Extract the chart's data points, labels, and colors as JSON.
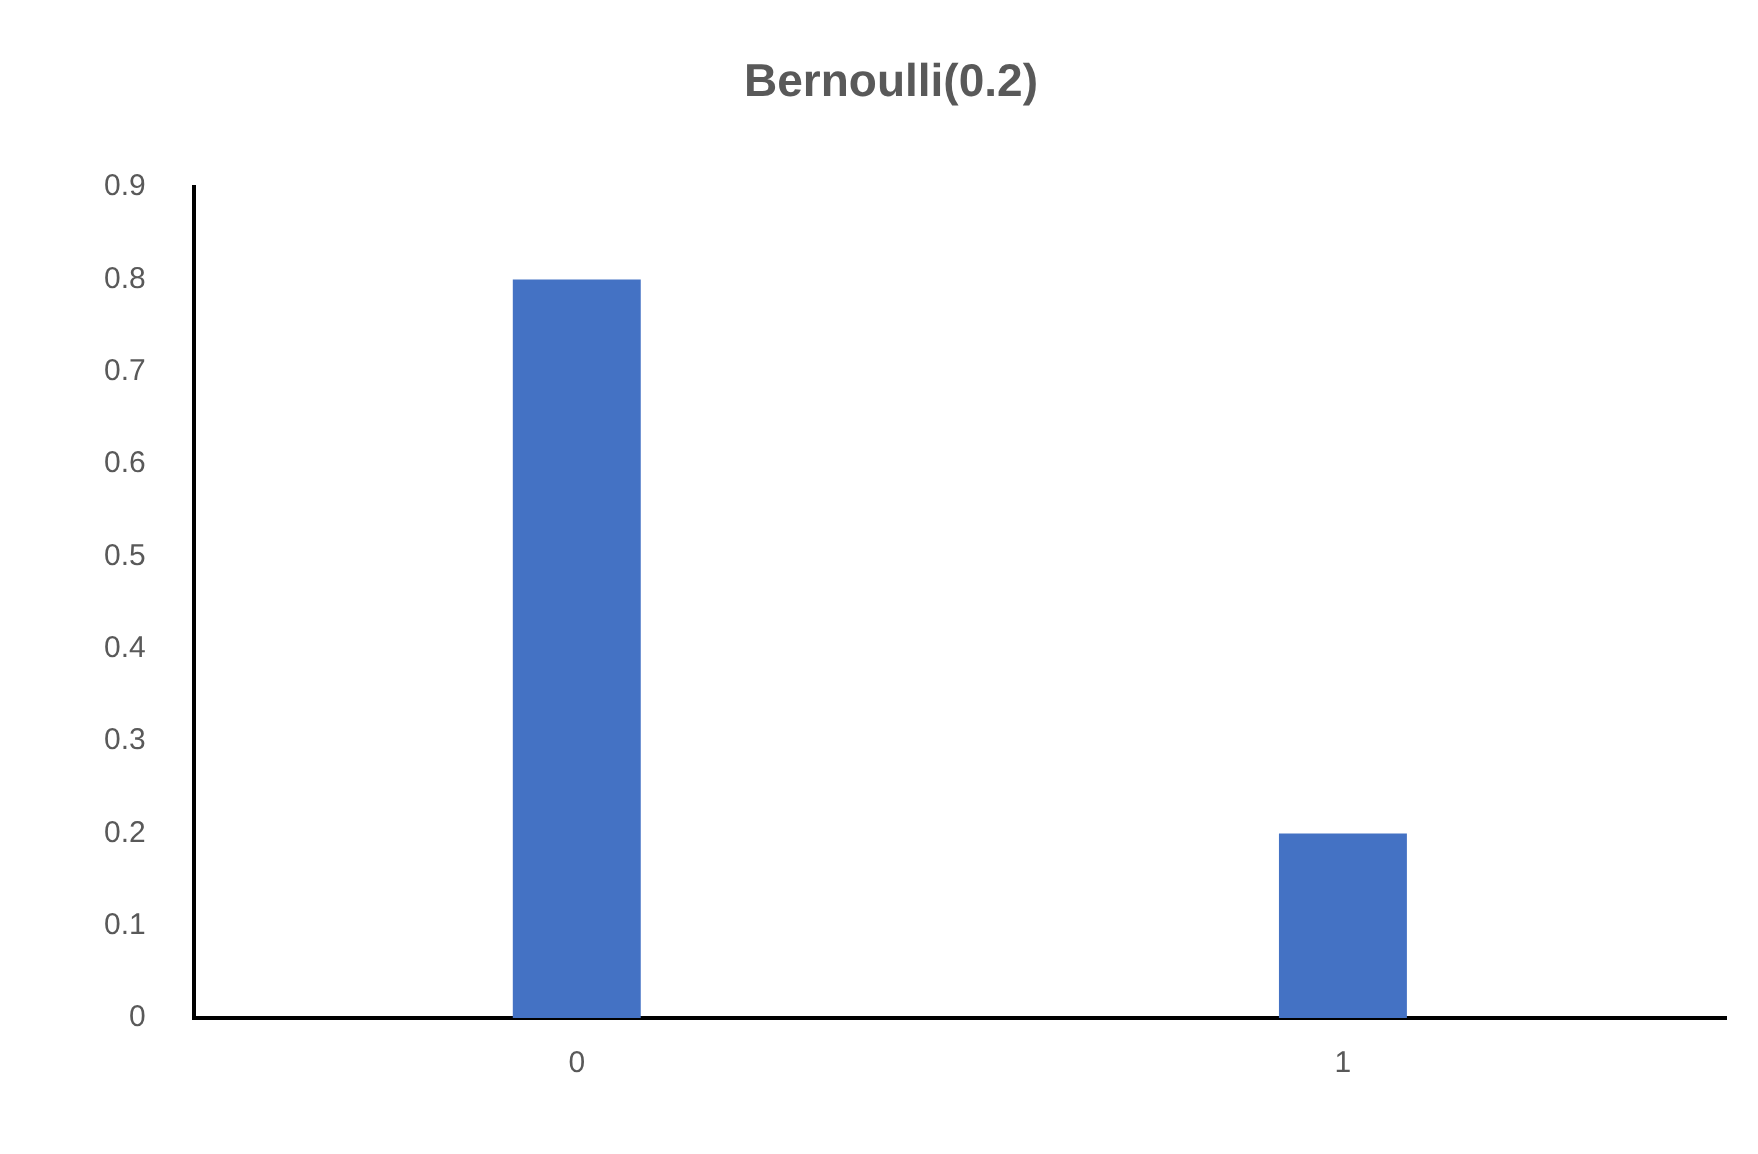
{
  "chart_data": {
    "type": "bar",
    "title": "Bernoulli(0.2)",
    "categories": [
      "0",
      "1"
    ],
    "values": [
      0.8,
      0.2
    ],
    "color": "#4472c4",
    "ylim": [
      0,
      0.9
    ],
    "yticks": [
      0,
      0.1,
      0.2,
      0.3,
      0.4,
      0.5,
      0.6,
      0.7,
      0.8,
      0.9
    ],
    "grid": false,
    "legend": false
  }
}
